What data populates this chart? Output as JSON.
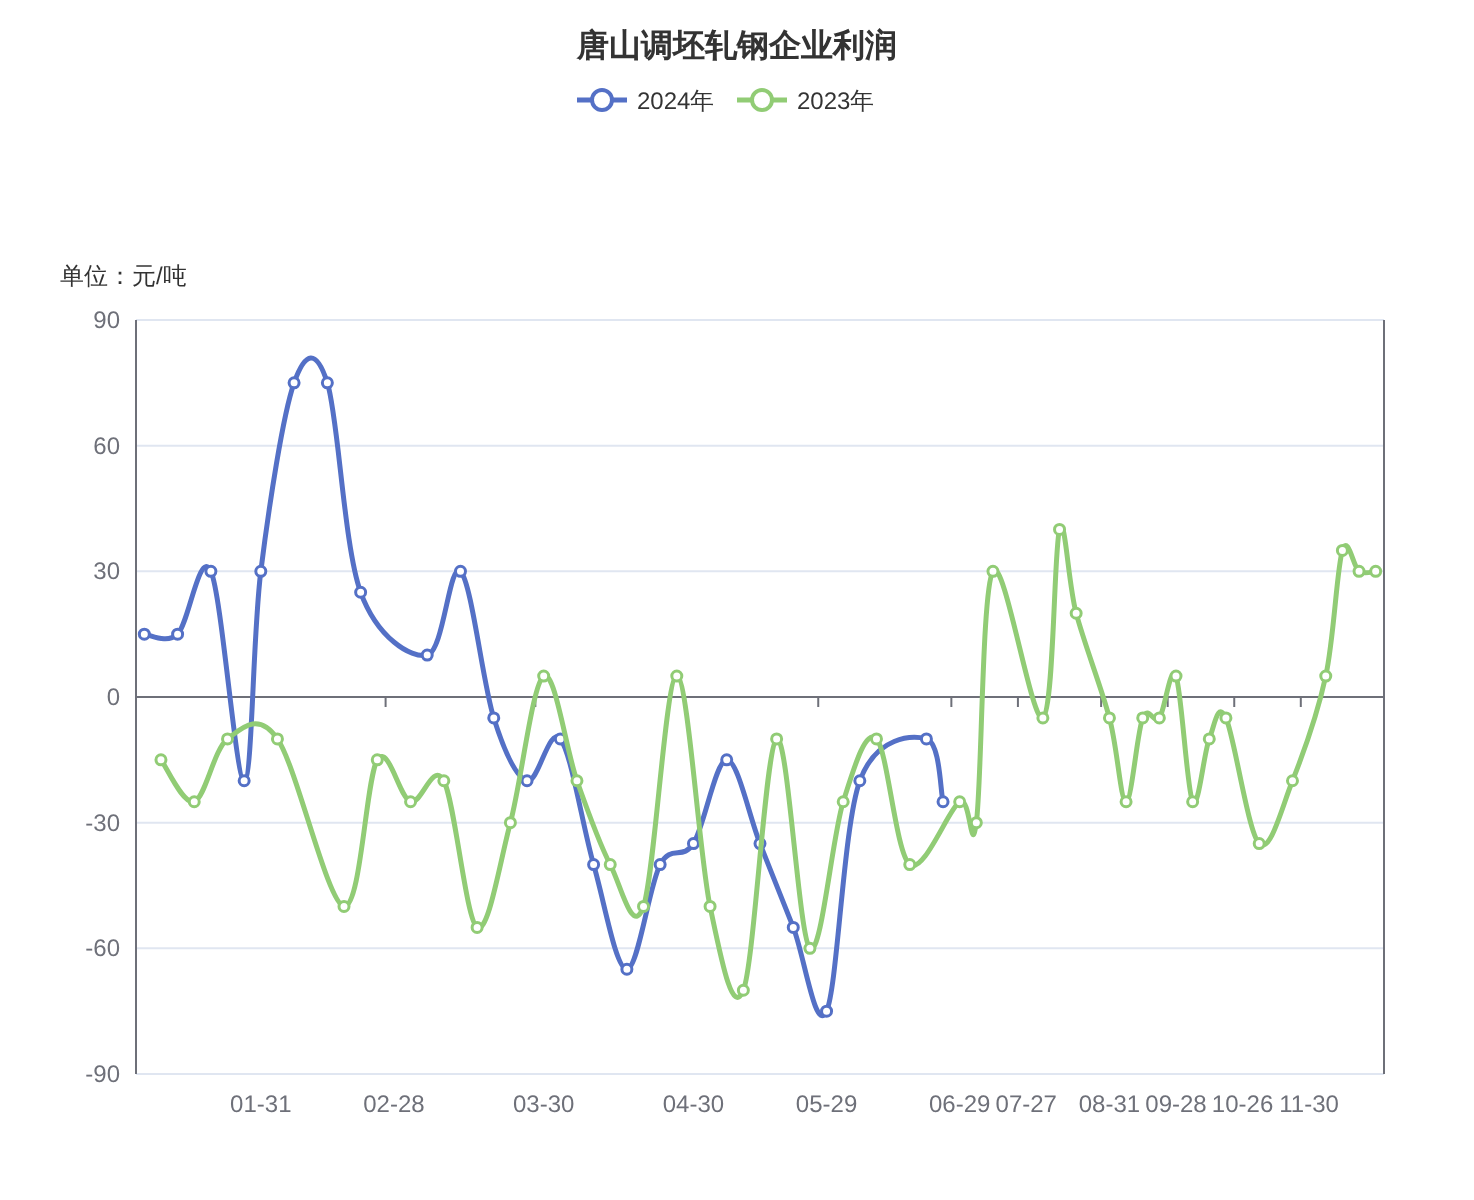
{
  "chart_data": {
    "type": "line",
    "title": "唐山调坯轧钢企业利润",
    "ylabel": "单位：元/吨",
    "categories": [
      null,
      null,
      null,
      null,
      null,
      null,
      null,
      "01-31",
      null,
      null,
      null,
      null,
      null,
      null,
      null,
      "02-28",
      null,
      null,
      null,
      null,
      null,
      null,
      null,
      null,
      "03-30",
      null,
      null,
      null,
      null,
      null,
      null,
      null,
      null,
      "04-30",
      null,
      null,
      null,
      null,
      null,
      null,
      null,
      "05-29",
      null,
      null,
      null,
      null,
      null,
      null,
      null,
      "06-29",
      null,
      null,
      null,
      "07-27",
      null,
      null,
      null,
      null,
      "08-31",
      null,
      null,
      null,
      "09-28",
      null,
      null,
      null,
      "10-26",
      null,
      null,
      null,
      "11-30",
      null,
      null,
      null,
      null
    ],
    "series": [
      {
        "name": "2024年",
        "color": "#5470c6",
        "values": [
          15,
          null,
          15,
          null,
          30,
          null,
          -20,
          30,
          null,
          75,
          null,
          75,
          null,
          25,
          null,
          null,
          null,
          10,
          null,
          30,
          null,
          -5,
          null,
          -20,
          null,
          -10,
          null,
          -40,
          null,
          -65,
          null,
          -40,
          null,
          -35,
          null,
          -15,
          null,
          -35,
          null,
          -55,
          null,
          -75,
          null,
          -20,
          null,
          null,
          null,
          -10,
          -25,
          null,
          null,
          null,
          null,
          null,
          null,
          null,
          null,
          null,
          null,
          null,
          null,
          null,
          null,
          null,
          null,
          null,
          null,
          null,
          null,
          null,
          null,
          null,
          null,
          null,
          null
        ]
      },
      {
        "name": "2023年",
        "color": "#91cc75",
        "values": [
          null,
          -15,
          null,
          -25,
          null,
          -10,
          null,
          null,
          -10,
          null,
          null,
          null,
          -50,
          null,
          -15,
          null,
          -25,
          null,
          -20,
          null,
          -55,
          null,
          -30,
          null,
          5,
          null,
          -20,
          null,
          -40,
          null,
          -50,
          null,
          5,
          null,
          -50,
          null,
          -70,
          null,
          -10,
          null,
          -60,
          null,
          -25,
          null,
          -10,
          null,
          -40,
          null,
          null,
          -25,
          -30,
          30,
          null,
          null,
          -5,
          40,
          20,
          null,
          -5,
          -25,
          -5,
          -5,
          5,
          -25,
          -10,
          -5,
          null,
          -35,
          null,
          -20,
          null,
          5,
          35,
          30,
          30
        ]
      }
    ],
    "ylim": [
      -90,
      90
    ],
    "yticks": [
      -90,
      -60,
      -30,
      0,
      30,
      60,
      90
    ],
    "grid": "y",
    "legend": "top",
    "marker": "circle",
    "line_style": "solid"
  }
}
